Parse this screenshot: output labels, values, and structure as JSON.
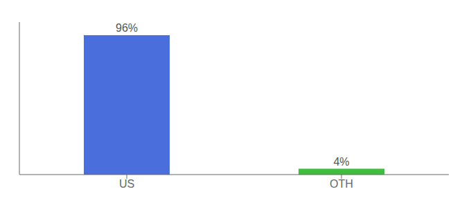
{
  "chart_data": {
    "type": "bar",
    "categories": [
      "US",
      "OTH"
    ],
    "values": [
      96,
      4
    ],
    "value_labels": [
      "96%",
      "4%"
    ],
    "colors": [
      "#4a6fdc",
      "#3dbf3d"
    ],
    "ylim": [
      0,
      105
    ],
    "yticks": [],
    "tick_labels": "x",
    "grid": false,
    "data_labels": true
  }
}
